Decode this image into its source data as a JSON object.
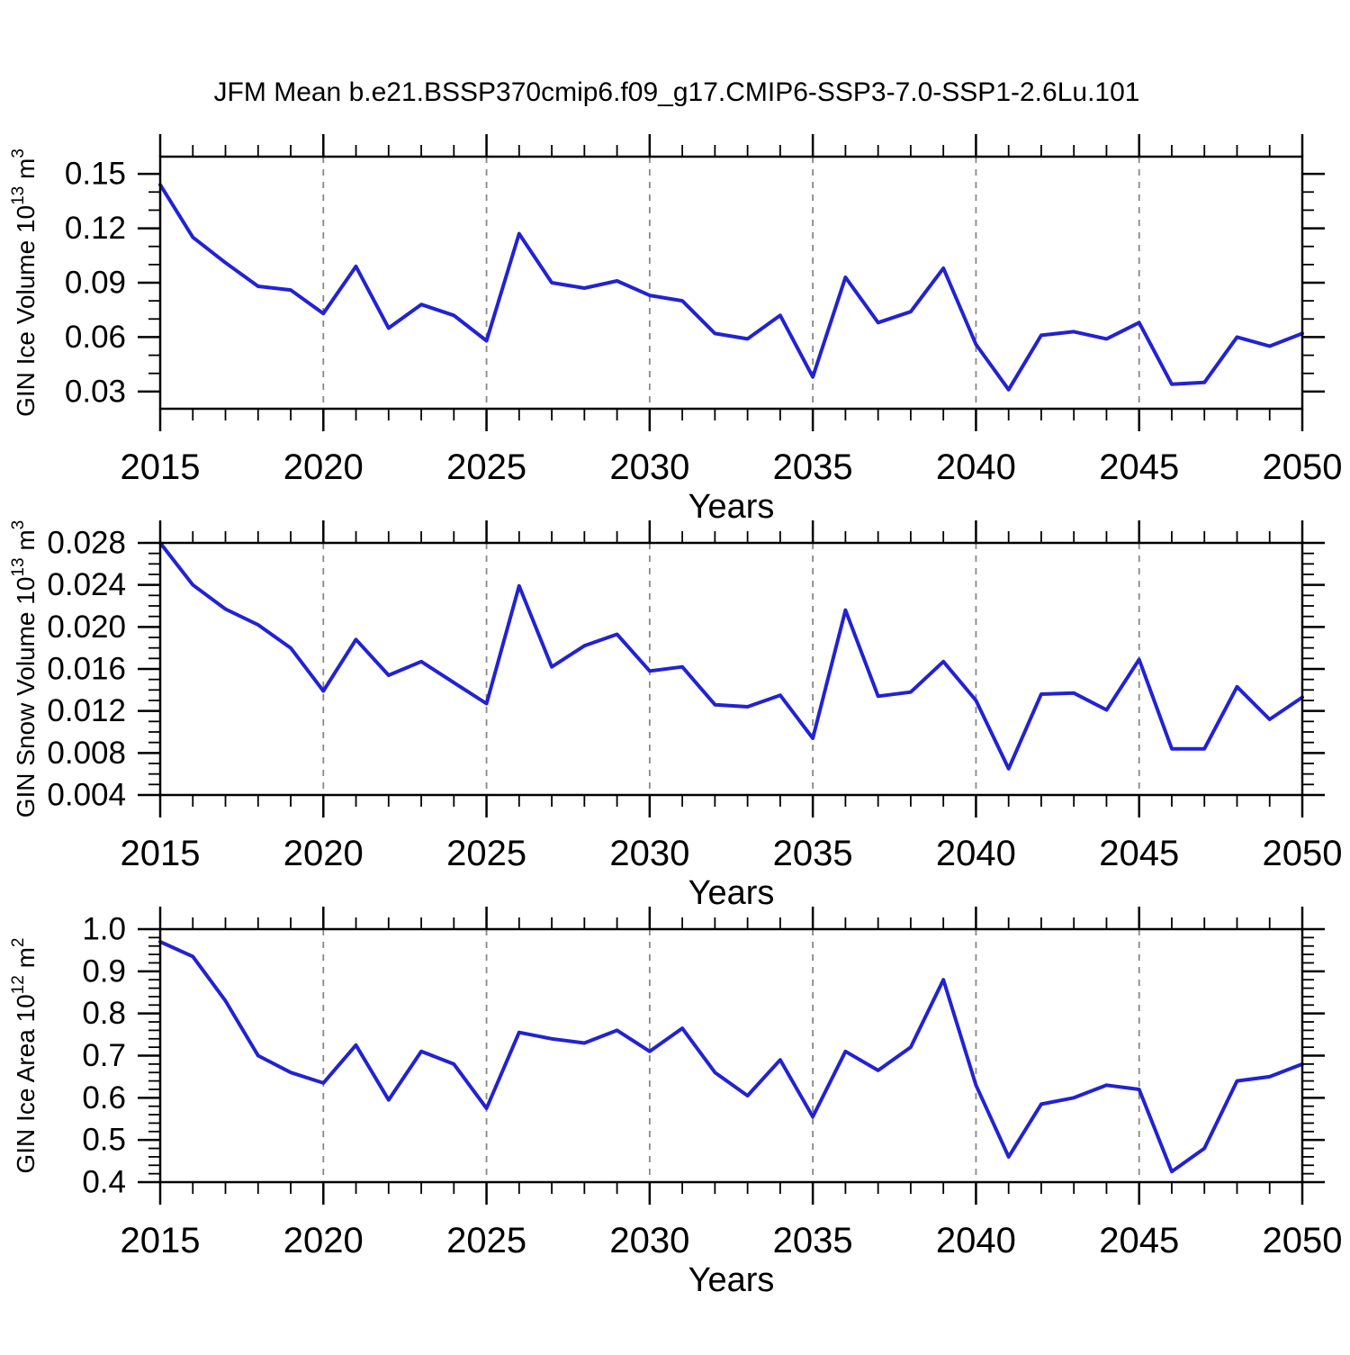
{
  "title": "JFM Mean b.e21.BSSP370cmip6.f09_g17.CMIP6-SSP3-7.0-SSP1-2.6Lu.101",
  "colors": {
    "line": "#2222d3",
    "grid": "#888888",
    "axis": "#000000",
    "background": "#ffffff"
  },
  "chart_data": [
    {
      "type": "line",
      "name": "gin-ice-volume",
      "xlabel": "Years",
      "ylabel": "GIN Ice Volume 10^13 m^3",
      "ylabel_parts": [
        {
          "text": "GIN Ice Volume 10"
        },
        {
          "text": "13",
          "sup": true
        },
        {
          "text": " m"
        },
        {
          "text": "3",
          "sup": true
        }
      ],
      "xlim": [
        2015,
        2050
      ],
      "ylim": [
        0.0205,
        0.1595
      ],
      "xticks": [
        2015,
        2020,
        2025,
        2030,
        2035,
        2040,
        2045,
        2050
      ],
      "xtick_labels": [
        "2015",
        "2020",
        "2025",
        "2030",
        "2035",
        "2040",
        "2045",
        "2050"
      ],
      "x_minor_step": 1,
      "yticks": [
        0.03,
        0.06,
        0.09,
        0.12,
        0.15
      ],
      "ytick_labels": [
        "0.03",
        "0.06",
        "0.09",
        "0.12",
        "0.15"
      ],
      "y_minor_step": 0.01,
      "grid_x": [
        2020,
        2025,
        2030,
        2035,
        2040,
        2045
      ],
      "grid_dashed": true,
      "x": [
        2015,
        2016,
        2017,
        2018,
        2019,
        2020,
        2021,
        2022,
        2023,
        2024,
        2025,
        2026,
        2027,
        2028,
        2029,
        2030,
        2031,
        2032,
        2033,
        2034,
        2035,
        2036,
        2037,
        2038,
        2039,
        2040,
        2041,
        2042,
        2043,
        2044,
        2045,
        2046,
        2047,
        2048,
        2049,
        2050
      ],
      "values": [
        0.144,
        0.115,
        0.101,
        0.088,
        0.086,
        0.073,
        0.099,
        0.065,
        0.078,
        0.072,
        0.058,
        0.117,
        0.09,
        0.087,
        0.091,
        0.083,
        0.08,
        0.062,
        0.059,
        0.072,
        0.038,
        0.093,
        0.068,
        0.074,
        0.098,
        0.056,
        0.031,
        0.061,
        0.063,
        0.059,
        0.068,
        0.034,
        0.035,
        0.06,
        0.055,
        0.062
      ]
    },
    {
      "type": "line",
      "name": "gin-snow-volume",
      "xlabel": "Years",
      "ylabel": "GIN Snow Volume 10^13 m^3",
      "ylabel_parts": [
        {
          "text": "GIN Snow Volume 10"
        },
        {
          "text": "13",
          "sup": true
        },
        {
          "text": " m"
        },
        {
          "text": "3",
          "sup": true
        }
      ],
      "xlim": [
        2015,
        2050
      ],
      "ylim": [
        0.004,
        0.028
      ],
      "xticks": [
        2015,
        2020,
        2025,
        2030,
        2035,
        2040,
        2045,
        2050
      ],
      "xtick_labels": [
        "2015",
        "2020",
        "2025",
        "2030",
        "2035",
        "2040",
        "2045",
        "2050"
      ],
      "x_minor_step": 1,
      "yticks": [
        0.004,
        0.008,
        0.012,
        0.016,
        0.02,
        0.024,
        0.028
      ],
      "ytick_labels": [
        "0.004",
        "0.008",
        "0.012",
        "0.016",
        "0.020",
        "0.024",
        "0.028"
      ],
      "y_minor_step": 0.001,
      "grid_x": [
        2020,
        2025,
        2030,
        2035,
        2040,
        2045
      ],
      "grid_dashed": true,
      "x": [
        2015,
        2016,
        2017,
        2018,
        2019,
        2020,
        2021,
        2022,
        2023,
        2024,
        2025,
        2026,
        2027,
        2028,
        2029,
        2030,
        2031,
        2032,
        2033,
        2034,
        2035,
        2036,
        2037,
        2038,
        2039,
        2040,
        2041,
        2042,
        2043,
        2044,
        2045,
        2046,
        2047,
        2048,
        2049,
        2050
      ],
      "values": [
        0.028,
        0.024,
        0.0217,
        0.0202,
        0.018,
        0.0139,
        0.0188,
        0.0154,
        0.0167,
        0.0147,
        0.0127,
        0.0239,
        0.0162,
        0.0182,
        0.0193,
        0.0158,
        0.0162,
        0.0126,
        0.0124,
        0.0135,
        0.0094,
        0.0216,
        0.0134,
        0.0138,
        0.0167,
        0.013,
        0.0065,
        0.0136,
        0.0137,
        0.0121,
        0.0169,
        0.0084,
        0.0084,
        0.0143,
        0.0112,
        0.0133
      ]
    },
    {
      "type": "line",
      "name": "gin-ice-area",
      "xlabel": "Years",
      "ylabel": "GIN Ice Area 10^12 m^2",
      "ylabel_parts": [
        {
          "text": "GIN Ice Area 10"
        },
        {
          "text": "12",
          "sup": true
        },
        {
          "text": " m"
        },
        {
          "text": "2",
          "sup": true
        }
      ],
      "xlim": [
        2015,
        2050
      ],
      "ylim": [
        0.4,
        1.0
      ],
      "xticks": [
        2015,
        2020,
        2025,
        2030,
        2035,
        2040,
        2045,
        2050
      ],
      "xtick_labels": [
        "2015",
        "2020",
        "2025",
        "2030",
        "2035",
        "2040",
        "2045",
        "2050"
      ],
      "x_minor_step": 1,
      "yticks": [
        0.4,
        0.5,
        0.6,
        0.7,
        0.8,
        0.9,
        1.0
      ],
      "ytick_labels": [
        "0.4",
        "0.5",
        "0.6",
        "0.7",
        "0.8",
        "0.9",
        "1.0"
      ],
      "y_minor_step": 0.02,
      "grid_x": [
        2020,
        2025,
        2030,
        2035,
        2040,
        2045
      ],
      "grid_dashed": true,
      "x": [
        2015,
        2016,
        2017,
        2018,
        2019,
        2020,
        2021,
        2022,
        2023,
        2024,
        2025,
        2026,
        2027,
        2028,
        2029,
        2030,
        2031,
        2032,
        2033,
        2034,
        2035,
        2036,
        2037,
        2038,
        2039,
        2040,
        2041,
        2042,
        2043,
        2044,
        2045,
        2046,
        2047,
        2048,
        2049,
        2050
      ],
      "values": [
        0.97,
        0.935,
        0.83,
        0.7,
        0.66,
        0.635,
        0.725,
        0.595,
        0.71,
        0.68,
        0.575,
        0.755,
        0.74,
        0.73,
        0.76,
        0.71,
        0.765,
        0.66,
        0.605,
        0.69,
        0.555,
        0.71,
        0.665,
        0.72,
        0.88,
        0.63,
        0.46,
        0.585,
        0.6,
        0.63,
        0.62,
        0.425,
        0.48,
        0.64,
        0.65,
        0.68
      ]
    }
  ]
}
